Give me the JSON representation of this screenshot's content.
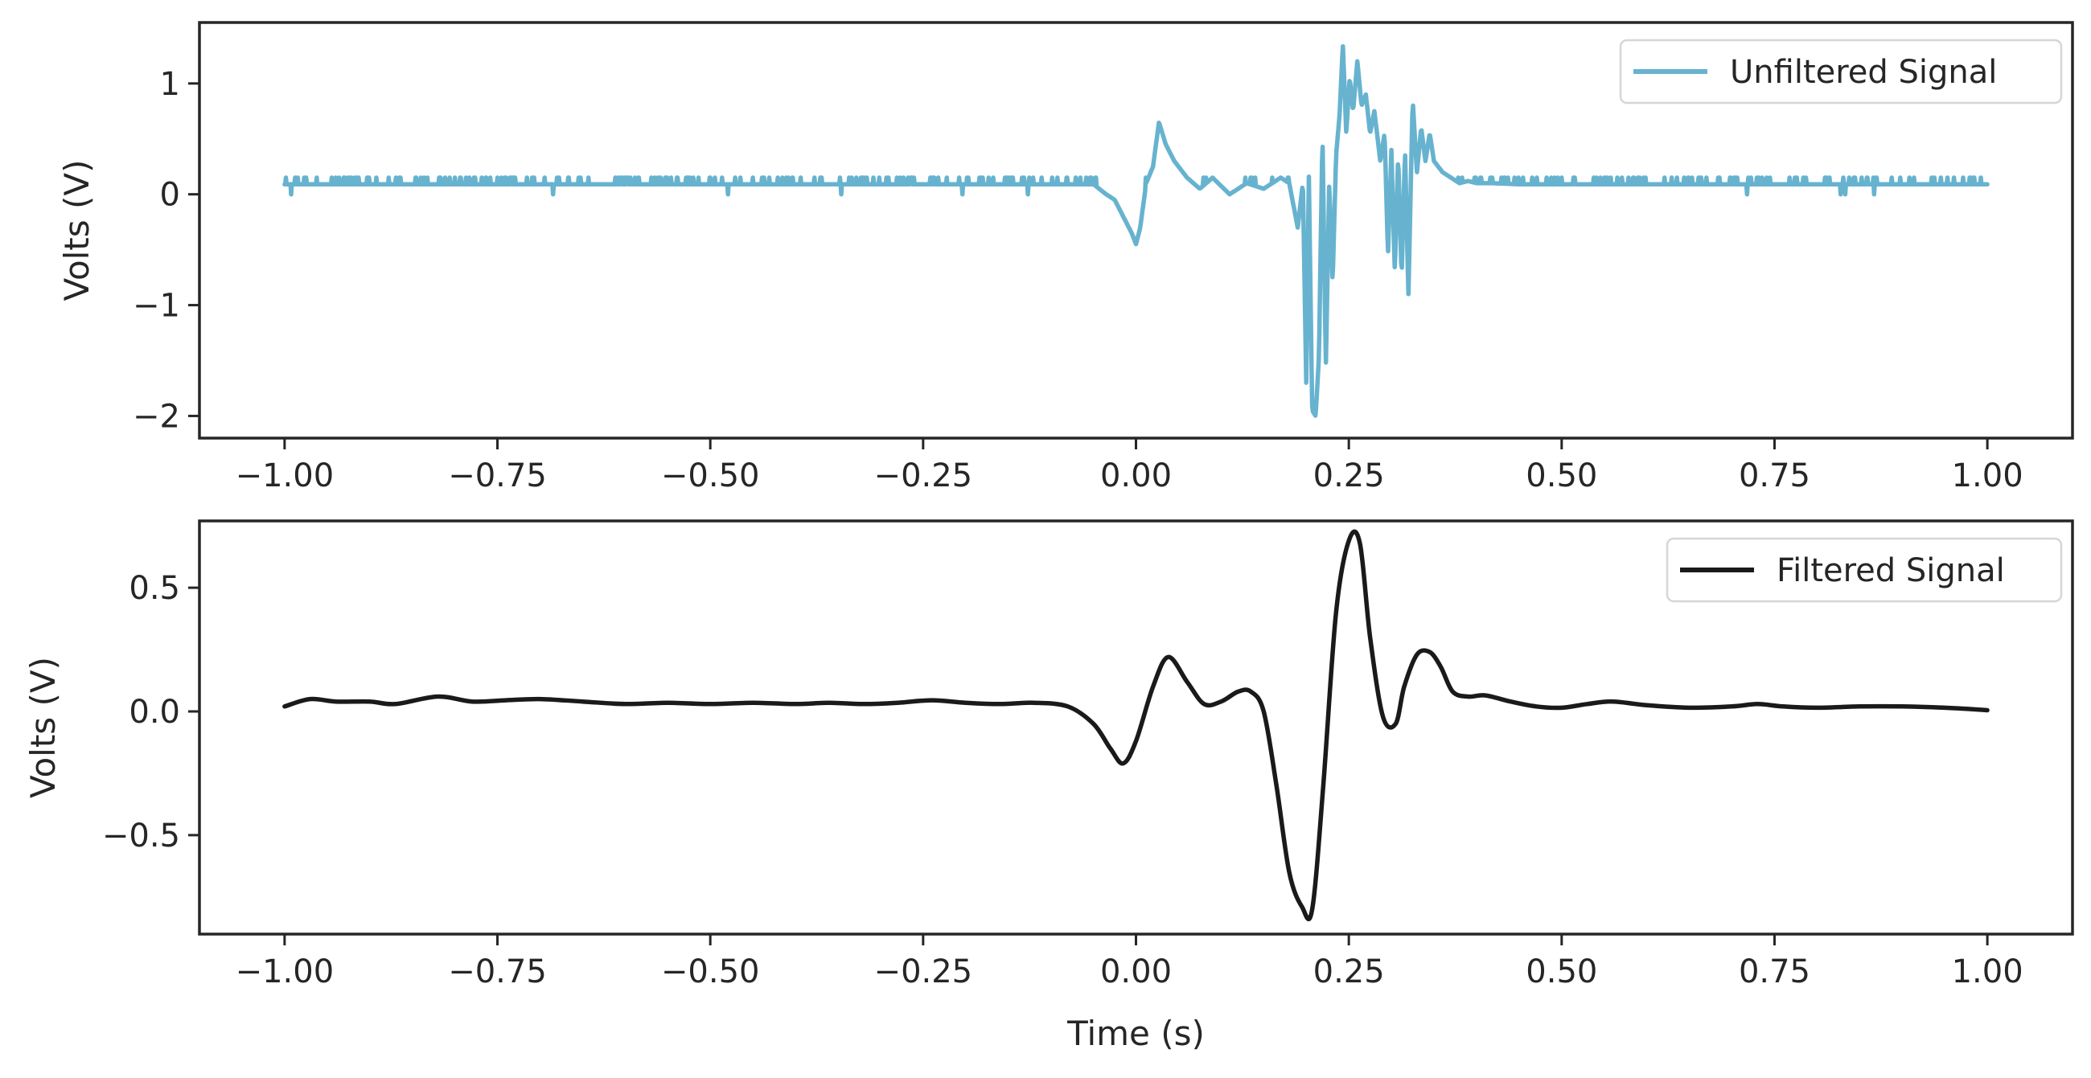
{
  "chart_data": [
    {
      "type": "line",
      "title": "",
      "xlabel": "",
      "ylabel": "Volts (V)",
      "xlim": [
        -1.1,
        1.1
      ],
      "ylim": [
        -2.2,
        1.55
      ],
      "xticks": [
        -1.0,
        -0.75,
        -0.5,
        -0.25,
        0.0,
        0.25,
        0.5,
        0.75,
        1.0
      ],
      "xtick_labels": [
        "−1.00",
        "−0.75",
        "−0.50",
        "−0.25",
        "0.00",
        "0.25",
        "0.50",
        "0.75",
        "1.00"
      ],
      "yticks": [
        1,
        0,
        -1,
        -2
      ],
      "ytick_labels": [
        "1",
        "0",
        "−1",
        "−2"
      ],
      "legend": "top-right",
      "grid": false,
      "series": [
        {
          "name": "Unfiltered Signal",
          "color": "#67b3cf",
          "baseline": 0.09,
          "noise_level": 0.15,
          "x": [
            -1.0,
            -0.05,
            -0.035,
            -0.025,
            -0.015,
            -0.005,
            0.0,
            0.005,
            0.012,
            0.02,
            0.027,
            0.035,
            0.045,
            0.06,
            0.075,
            0.09,
            0.11,
            0.13,
            0.15,
            0.17,
            0.18,
            0.19,
            0.196,
            0.2,
            0.203,
            0.207,
            0.211,
            0.215,
            0.219,
            0.223,
            0.227,
            0.231,
            0.235,
            0.239,
            0.243,
            0.247,
            0.251,
            0.255,
            0.26,
            0.265,
            0.27,
            0.275,
            0.28,
            0.287,
            0.292,
            0.296,
            0.3,
            0.304,
            0.308,
            0.312,
            0.316,
            0.32,
            0.325,
            0.33,
            0.335,
            0.34,
            0.345,
            0.35,
            0.36,
            0.37,
            0.38,
            0.39,
            0.4,
            0.42,
            0.45,
            1.0
          ],
          "y": [
            0.09,
            0.09,
            0.0,
            -0.05,
            -0.2,
            -0.35,
            -0.45,
            -0.3,
            0.1,
            0.25,
            0.65,
            0.45,
            0.3,
            0.15,
            0.05,
            0.15,
            0.0,
            0.1,
            0.05,
            0.15,
            0.1,
            -0.3,
            0.1,
            -1.7,
            0.2,
            -1.95,
            -2.0,
            -1.45,
            0.55,
            -1.55,
            0.1,
            -0.8,
            0.35,
            0.7,
            1.35,
            0.55,
            1.05,
            0.75,
            1.2,
            0.8,
            0.9,
            0.55,
            0.75,
            0.3,
            0.55,
            -0.55,
            0.4,
            -0.7,
            0.35,
            -0.75,
            0.4,
            -0.9,
            0.85,
            0.2,
            0.6,
            0.3,
            0.55,
            0.3,
            0.2,
            0.15,
            0.1,
            0.12,
            0.1,
            0.1,
            0.09,
            0.09
          ]
        }
      ]
    },
    {
      "type": "line",
      "title": "",
      "xlabel": "Time (s)",
      "ylabel": "Volts (V)",
      "xlim": [
        -1.1,
        1.1
      ],
      "ylim": [
        -0.9,
        0.77
      ],
      "xticks": [
        -1.0,
        -0.75,
        -0.5,
        -0.25,
        0.0,
        0.25,
        0.5,
        0.75,
        1.0
      ],
      "xtick_labels": [
        "−1.00",
        "−0.75",
        "−0.50",
        "−0.25",
        "0.00",
        "0.25",
        "0.50",
        "0.75",
        "1.00"
      ],
      "yticks": [
        0.5,
        0.0,
        -0.5
      ],
      "ytick_labels": [
        "0.5",
        "0.0",
        "−0.5"
      ],
      "legend": "top-right",
      "grid": false,
      "series": [
        {
          "name": "Filtered Signal",
          "color": "#1a1a1a",
          "x": [
            -1.0,
            -0.97,
            -0.94,
            -0.9,
            -0.87,
            -0.82,
            -0.78,
            -0.74,
            -0.7,
            -0.65,
            -0.6,
            -0.55,
            -0.5,
            -0.45,
            -0.4,
            -0.36,
            -0.32,
            -0.28,
            -0.24,
            -0.2,
            -0.16,
            -0.12,
            -0.08,
            -0.05,
            -0.03,
            -0.015,
            0.0,
            0.02,
            0.038,
            0.06,
            0.08,
            0.1,
            0.12,
            0.135,
            0.15,
            0.165,
            0.18,
            0.195,
            0.207,
            0.22,
            0.235,
            0.25,
            0.263,
            0.275,
            0.29,
            0.305,
            0.315,
            0.33,
            0.345,
            0.358,
            0.372,
            0.39,
            0.41,
            0.44,
            0.47,
            0.5,
            0.53,
            0.56,
            0.6,
            0.65,
            0.7,
            0.73,
            0.76,
            0.8,
            0.85,
            0.9,
            0.95,
            1.0
          ],
          "y": [
            0.02,
            0.05,
            0.04,
            0.04,
            0.03,
            0.06,
            0.04,
            0.045,
            0.05,
            0.04,
            0.03,
            0.035,
            0.03,
            0.035,
            0.03,
            0.035,
            0.03,
            0.035,
            0.045,
            0.035,
            0.03,
            0.035,
            0.02,
            -0.05,
            -0.15,
            -0.21,
            -0.12,
            0.1,
            0.22,
            0.12,
            0.03,
            0.04,
            0.08,
            0.08,
            0.0,
            -0.3,
            -0.65,
            -0.79,
            -0.8,
            -0.3,
            0.4,
            0.69,
            0.68,
            0.3,
            -0.02,
            -0.05,
            0.1,
            0.23,
            0.24,
            0.18,
            0.08,
            0.06,
            0.065,
            0.04,
            0.02,
            0.015,
            0.03,
            0.04,
            0.025,
            0.015,
            0.02,
            0.03,
            0.02,
            0.015,
            0.02,
            0.02,
            0.015,
            0.005
          ]
        }
      ]
    }
  ]
}
